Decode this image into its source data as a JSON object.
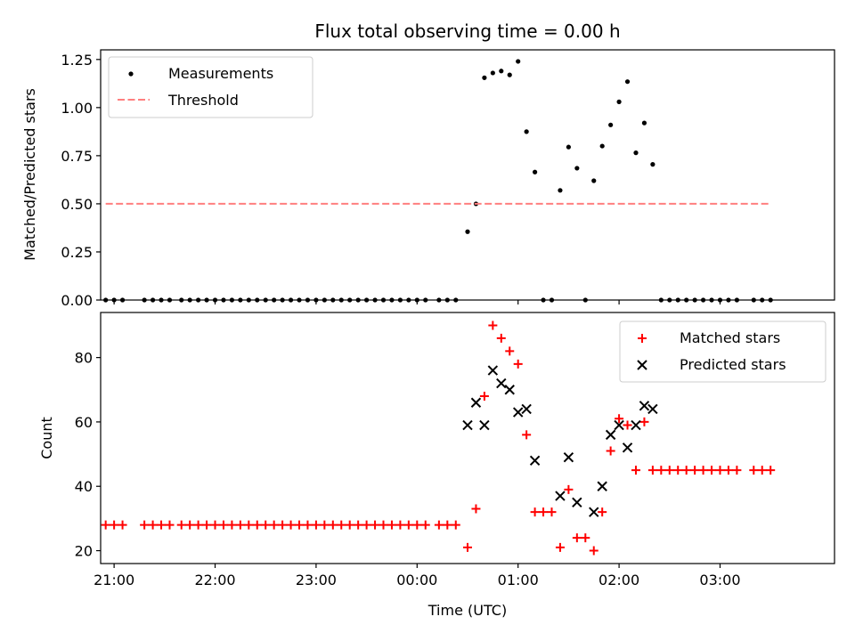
{
  "chart_data": [
    {
      "type": "scatter",
      "title": "Flux total observing time = 0.00 h",
      "xlabel": "",
      "ylabel": "Matched/Predicted stars",
      "ylim": [
        0,
        1.3
      ],
      "yticks": [
        "0.00",
        "0.25",
        "0.50",
        "0.75",
        "1.00",
        "1.25"
      ],
      "xlim": [
        "20:52",
        "04:08"
      ],
      "grid": false,
      "legend": {
        "placement": "top-left",
        "entries": [
          "Measurements",
          "Threshold"
        ]
      },
      "series": [
        {
          "name": "Measurements",
          "marker": "dot",
          "color": "#000000",
          "points": [
            [
              "20:55",
              0
            ],
            [
              "21:00",
              0
            ],
            [
              "21:05",
              0
            ],
            [
              "21:18",
              0
            ],
            [
              "21:23",
              0
            ],
            [
              "21:28",
              0
            ],
            [
              "21:33",
              0
            ],
            [
              "21:40",
              0
            ],
            [
              "21:45",
              0
            ],
            [
              "21:50",
              0
            ],
            [
              "21:55",
              0
            ],
            [
              "22:00",
              0
            ],
            [
              "22:05",
              0
            ],
            [
              "22:10",
              0
            ],
            [
              "22:15",
              0
            ],
            [
              "22:20",
              0
            ],
            [
              "22:25",
              0
            ],
            [
              "22:30",
              0
            ],
            [
              "22:35",
              0
            ],
            [
              "22:40",
              0
            ],
            [
              "22:45",
              0
            ],
            [
              "22:50",
              0
            ],
            [
              "22:55",
              0
            ],
            [
              "23:00",
              0
            ],
            [
              "23:05",
              0
            ],
            [
              "23:10",
              0
            ],
            [
              "23:15",
              0
            ],
            [
              "23:20",
              0
            ],
            [
              "23:25",
              0
            ],
            [
              "23:30",
              0
            ],
            [
              "23:35",
              0
            ],
            [
              "23:40",
              0
            ],
            [
              "23:45",
              0
            ],
            [
              "23:50",
              0
            ],
            [
              "23:55",
              0
            ],
            [
              "00:00",
              0
            ],
            [
              "00:05",
              0
            ],
            [
              "00:13",
              0
            ],
            [
              "00:18",
              0
            ],
            [
              "00:23",
              0
            ],
            [
              "00:30",
              0.355
            ],
            [
              "00:35",
              0.5
            ],
            [
              "00:40",
              1.155
            ],
            [
              "00:45",
              1.18
            ],
            [
              "00:50",
              1.19
            ],
            [
              "00:55",
              1.17
            ],
            [
              "01:00",
              1.24
            ],
            [
              "01:05",
              0.875
            ],
            [
              "01:10",
              0.665
            ],
            [
              "01:15",
              0
            ],
            [
              "01:20",
              0
            ],
            [
              "01:25",
              0.57
            ],
            [
              "01:30",
              0.795
            ],
            [
              "01:35",
              0.685
            ],
            [
              "01:40",
              0
            ],
            [
              "01:45",
              0.62
            ],
            [
              "01:50",
              0.8
            ],
            [
              "01:55",
              0.91
            ],
            [
              "02:00",
              1.03
            ],
            [
              "02:05",
              1.135
            ],
            [
              "02:10",
              0.765
            ],
            [
              "02:15",
              0.92
            ],
            [
              "02:20",
              0.705
            ],
            [
              "02:25",
              0
            ],
            [
              "02:30",
              0
            ],
            [
              "02:35",
              0
            ],
            [
              "02:40",
              0
            ],
            [
              "02:45",
              0
            ],
            [
              "02:50",
              0
            ],
            [
              "02:55",
              0
            ],
            [
              "03:00",
              0
            ],
            [
              "03:05",
              0
            ],
            [
              "03:10",
              0
            ],
            [
              "03:20",
              0
            ],
            [
              "03:25",
              0
            ],
            [
              "03:30",
              0
            ]
          ]
        },
        {
          "name": "Threshold",
          "type": "line",
          "style": "dashed",
          "color": "#ff7f7f",
          "points": [
            [
              "20:55",
              0.5
            ],
            [
              "03:30",
              0.5
            ]
          ]
        }
      ]
    },
    {
      "type": "scatter",
      "title": "",
      "xlabel": "Time (UTC)",
      "ylabel": "Count",
      "ylim": [
        16,
        94
      ],
      "yticks": [
        "20",
        "40",
        "60",
        "80"
      ],
      "xlim": [
        "20:52",
        "04:08"
      ],
      "xticks": [
        "21:00",
        "22:00",
        "23:00",
        "00:00",
        "01:00",
        "02:00",
        "03:00"
      ],
      "grid": false,
      "legend": {
        "placement": "top-right",
        "entries": [
          "Matched stars",
          "Predicted stars"
        ]
      },
      "series": [
        {
          "name": "Matched stars",
          "marker": "plus",
          "color": "#ff0000",
          "points": [
            [
              "20:55",
              28
            ],
            [
              "21:00",
              28
            ],
            [
              "21:05",
              28
            ],
            [
              "21:18",
              28
            ],
            [
              "21:23",
              28
            ],
            [
              "21:28",
              28
            ],
            [
              "21:33",
              28
            ],
            [
              "21:40",
              28
            ],
            [
              "21:45",
              28
            ],
            [
              "21:50",
              28
            ],
            [
              "21:55",
              28
            ],
            [
              "22:00",
              28
            ],
            [
              "22:05",
              28
            ],
            [
              "22:10",
              28
            ],
            [
              "22:15",
              28
            ],
            [
              "22:20",
              28
            ],
            [
              "22:25",
              28
            ],
            [
              "22:30",
              28
            ],
            [
              "22:35",
              28
            ],
            [
              "22:40",
              28
            ],
            [
              "22:45",
              28
            ],
            [
              "22:50",
              28
            ],
            [
              "22:55",
              28
            ],
            [
              "23:00",
              28
            ],
            [
              "23:05",
              28
            ],
            [
              "23:10",
              28
            ],
            [
              "23:15",
              28
            ],
            [
              "23:20",
              28
            ],
            [
              "23:25",
              28
            ],
            [
              "23:30",
              28
            ],
            [
              "23:35",
              28
            ],
            [
              "23:40",
              28
            ],
            [
              "23:45",
              28
            ],
            [
              "23:50",
              28
            ],
            [
              "23:55",
              28
            ],
            [
              "00:00",
              28
            ],
            [
              "00:05",
              28
            ],
            [
              "00:13",
              28
            ],
            [
              "00:18",
              28
            ],
            [
              "00:23",
              28
            ],
            [
              "00:30",
              21
            ],
            [
              "00:35",
              33
            ],
            [
              "00:40",
              68
            ],
            [
              "00:45",
              90
            ],
            [
              "00:50",
              86
            ],
            [
              "00:55",
              82
            ],
            [
              "01:00",
              78
            ],
            [
              "01:05",
              56
            ],
            [
              "01:10",
              32
            ],
            [
              "01:15",
              32
            ],
            [
              "01:20",
              32
            ],
            [
              "01:25",
              21
            ],
            [
              "01:30",
              39
            ],
            [
              "01:35",
              24
            ],
            [
              "01:40",
              24
            ],
            [
              "01:45",
              20
            ],
            [
              "01:50",
              32
            ],
            [
              "01:55",
              51
            ],
            [
              "02:00",
              61
            ],
            [
              "02:05",
              59
            ],
            [
              "02:10",
              45
            ],
            [
              "02:15",
              60
            ],
            [
              "02:20",
              45
            ],
            [
              "02:25",
              45
            ],
            [
              "02:30",
              45
            ],
            [
              "02:35",
              45
            ],
            [
              "02:40",
              45
            ],
            [
              "02:45",
              45
            ],
            [
              "02:50",
              45
            ],
            [
              "02:55",
              45
            ],
            [
              "03:00",
              45
            ],
            [
              "03:05",
              45
            ],
            [
              "03:10",
              45
            ],
            [
              "03:20",
              45
            ],
            [
              "03:25",
              45
            ],
            [
              "03:30",
              45
            ]
          ]
        },
        {
          "name": "Predicted stars",
          "marker": "x",
          "color": "#000000",
          "points": [
            [
              "00:30",
              59
            ],
            [
              "00:35",
              66
            ],
            [
              "00:40",
              59
            ],
            [
              "00:45",
              76
            ],
            [
              "00:50",
              72
            ],
            [
              "00:55",
              70
            ],
            [
              "01:00",
              63
            ],
            [
              "01:05",
              64
            ],
            [
              "01:10",
              48
            ],
            [
              "01:25",
              37
            ],
            [
              "01:30",
              49
            ],
            [
              "01:35",
              35
            ],
            [
              "01:45",
              32
            ],
            [
              "01:50",
              40
            ],
            [
              "01:55",
              56
            ],
            [
              "02:00",
              59
            ],
            [
              "02:05",
              52
            ],
            [
              "02:10",
              59
            ],
            [
              "02:15",
              65
            ],
            [
              "02:20",
              64
            ]
          ]
        }
      ]
    }
  ]
}
